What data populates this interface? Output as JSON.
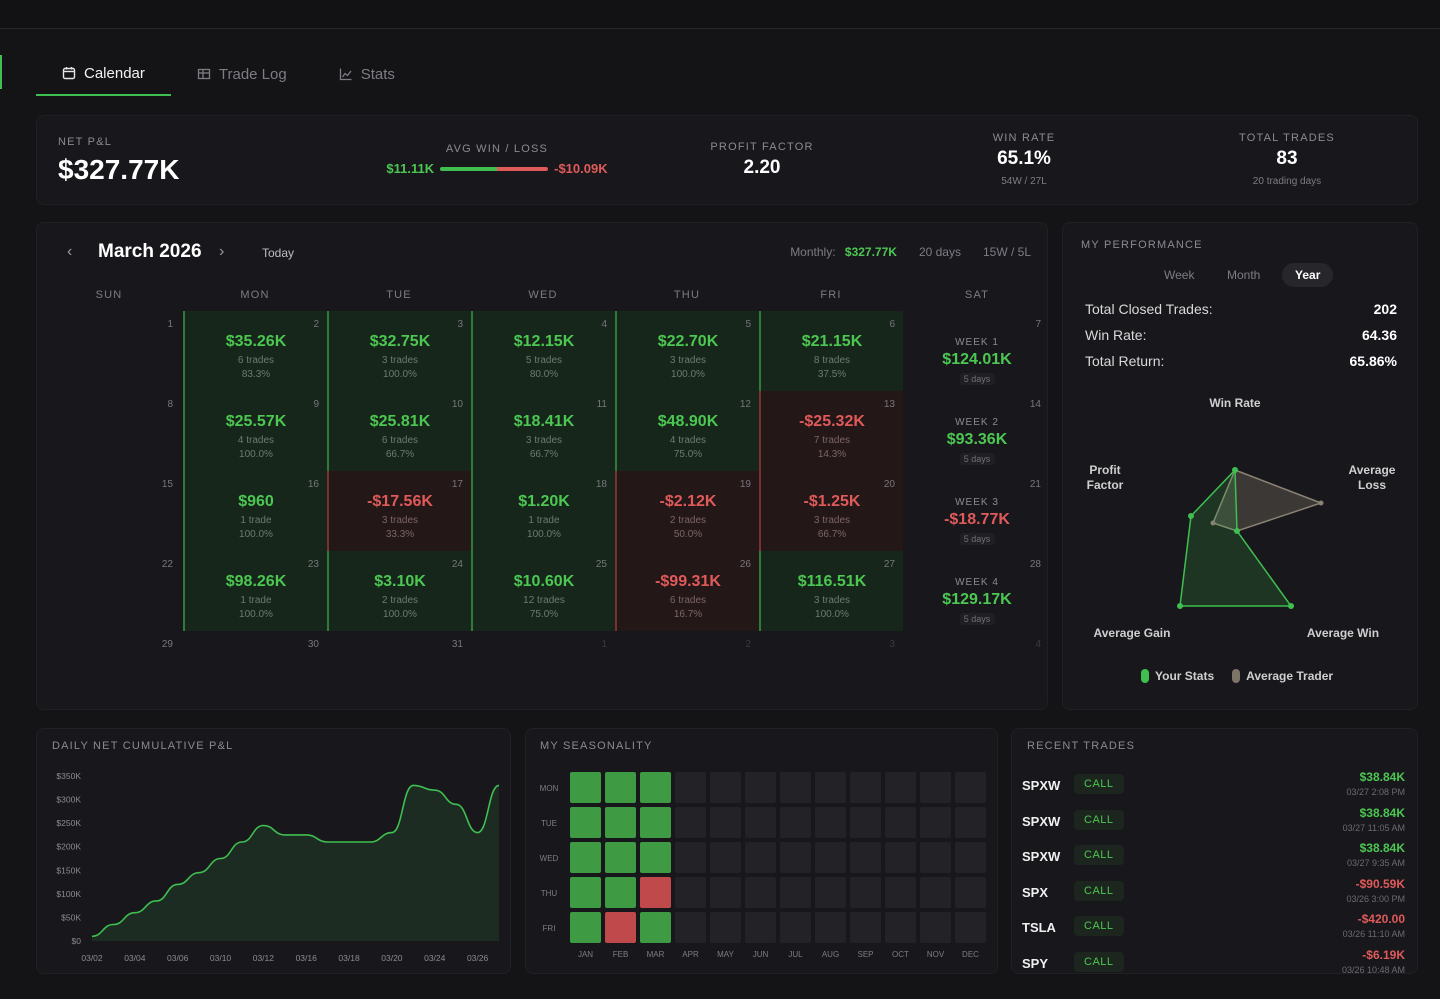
{
  "tabs": [
    {
      "label": "Calendar",
      "icon": "calendar-icon",
      "active": true
    },
    {
      "label": "Trade Log",
      "icon": "table-icon",
      "active": false
    },
    {
      "label": "Stats",
      "icon": "chart-line-icon",
      "active": false
    }
  ],
  "summary": {
    "net_pnl_label": "NET P&L",
    "net_pnl": "$327.77K",
    "avg_label": "AVG WIN / LOSS",
    "avg_win": "$11.11K",
    "avg_loss": "-$10.09K",
    "pf_label": "PROFIT FACTOR",
    "pf": "2.20",
    "wr_label": "WIN RATE",
    "wr": "65.1%",
    "wr_sub": "54W / 27L",
    "tt_label": "TOTAL TRADES",
    "tt": "83",
    "tt_sub": "20 trading days"
  },
  "calendar": {
    "month": "March 2026",
    "today": "Today",
    "prev": "‹",
    "next": "›",
    "monthly_label": "Monthly:",
    "monthly_value": "$327.77K",
    "days": "20 days",
    "wl": "15W / 5L",
    "dow": [
      "SUN",
      "MON",
      "TUE",
      "WED",
      "THU",
      "FRI",
      "SAT"
    ],
    "weeks": [
      [
        {
          "d": "1"
        },
        {
          "d": "2",
          "v": "$35.26K",
          "t": "6 trades",
          "p": "83.3%",
          "s": "win"
        },
        {
          "d": "3",
          "v": "$32.75K",
          "t": "3 trades",
          "p": "100.0%",
          "s": "win"
        },
        {
          "d": "4",
          "v": "$12.15K",
          "t": "5 trades",
          "p": "80.0%",
          "s": "win"
        },
        {
          "d": "5",
          "v": "$22.70K",
          "t": "3 trades",
          "p": "100.0%",
          "s": "win"
        },
        {
          "d": "6",
          "v": "$21.15K",
          "t": "8 trades",
          "p": "37.5%",
          "s": "win"
        },
        {
          "d": "7",
          "wl": "WEEK 1",
          "v": "$124.01K",
          "days": "5 days",
          "s": "win"
        }
      ],
      [
        {
          "d": "8"
        },
        {
          "d": "9",
          "v": "$25.57K",
          "t": "4 trades",
          "p": "100.0%",
          "s": "win"
        },
        {
          "d": "10",
          "v": "$25.81K",
          "t": "6 trades",
          "p": "66.7%",
          "s": "win"
        },
        {
          "d": "11",
          "v": "$18.41K",
          "t": "3 trades",
          "p": "66.7%",
          "s": "win"
        },
        {
          "d": "12",
          "v": "$48.90K",
          "t": "4 trades",
          "p": "75.0%",
          "s": "win"
        },
        {
          "d": "13",
          "v": "-$25.32K",
          "t": "7 trades",
          "p": "14.3%",
          "s": "loss"
        },
        {
          "d": "14",
          "wl": "WEEK 2",
          "v": "$93.36K",
          "days": "5 days",
          "s": "win"
        }
      ],
      [
        {
          "d": "15"
        },
        {
          "d": "16",
          "v": "$960",
          "t": "1 trade",
          "p": "100.0%",
          "s": "win"
        },
        {
          "d": "17",
          "v": "-$17.56K",
          "t": "3 trades",
          "p": "33.3%",
          "s": "loss"
        },
        {
          "d": "18",
          "v": "$1.20K",
          "t": "1 trade",
          "p": "100.0%",
          "s": "win"
        },
        {
          "d": "19",
          "v": "-$2.12K",
          "t": "2 trades",
          "p": "50.0%",
          "s": "loss"
        },
        {
          "d": "20",
          "v": "-$1.25K",
          "t": "3 trades",
          "p": "66.7%",
          "s": "loss"
        },
        {
          "d": "21",
          "wl": "WEEK 3",
          "v": "-$18.77K",
          "days": "5 days",
          "s": "loss"
        }
      ],
      [
        {
          "d": "22"
        },
        {
          "d": "23",
          "v": "$98.26K",
          "t": "1 trade",
          "p": "100.0%",
          "s": "win"
        },
        {
          "d": "24",
          "v": "$3.10K",
          "t": "2 trades",
          "p": "100.0%",
          "s": "win"
        },
        {
          "d": "25",
          "v": "$10.60K",
          "t": "12 trades",
          "p": "75.0%",
          "s": "win"
        },
        {
          "d": "26",
          "v": "-$99.31K",
          "t": "6 trades",
          "p": "16.7%",
          "s": "loss"
        },
        {
          "d": "27",
          "v": "$116.51K",
          "t": "3 trades",
          "p": "100.0%",
          "s": "win"
        },
        {
          "d": "28",
          "wl": "WEEK 4",
          "v": "$129.17K",
          "days": "5 days",
          "s": "win"
        }
      ],
      [
        {
          "d": "29"
        },
        {
          "d": "30"
        },
        {
          "d": "31"
        },
        {
          "d": "1",
          "dim": true
        },
        {
          "d": "2",
          "dim": true
        },
        {
          "d": "3",
          "dim": true
        },
        {
          "d": "4",
          "dim": true
        }
      ]
    ]
  },
  "performance": {
    "title": "MY PERFORMANCE",
    "segments": [
      {
        "label": "Week",
        "on": false
      },
      {
        "label": "Month",
        "on": false
      },
      {
        "label": "Year",
        "on": true
      }
    ],
    "rows": [
      {
        "k": "Total Closed Trades:",
        "v": "202"
      },
      {
        "k": "Win Rate:",
        "v": "64.36"
      },
      {
        "k": "Total Return:",
        "v": "65.86%"
      }
    ],
    "radar_labels": {
      "top": "Win Rate",
      "left": "Profit\nFactor",
      "right": "Average\nLoss",
      "bl": "Average Gain",
      "br": "Average Win"
    },
    "legend": [
      {
        "label": "Your Stats",
        "color": "#3fbf4f"
      },
      {
        "label": "Average Trader",
        "color": "#7d7668"
      }
    ]
  },
  "cumulative": {
    "title": "DAILY NET CUMULATIVE P&L",
    "chart_data": {
      "type": "line",
      "title": "DAILY NET CUMULATIVE P&L",
      "x": [
        "03/02",
        "03/03",
        "03/04",
        "03/05",
        "03/06",
        "03/09",
        "03/10",
        "03/11",
        "03/12",
        "03/13",
        "03/16",
        "03/17",
        "03/18",
        "03/19",
        "03/20",
        "03/23",
        "03/24",
        "03/25",
        "03/26",
        "03/27"
      ],
      "y": [
        10,
        35,
        60,
        85,
        120,
        145,
        175,
        210,
        245,
        225,
        225,
        210,
        210,
        210,
        230,
        330,
        320,
        290,
        230,
        330
      ],
      "x_ticks": [
        "03/02",
        "03/04",
        "03/06",
        "03/10",
        "03/12",
        "03/16",
        "03/18",
        "03/20",
        "03/24",
        "03/26"
      ],
      "y_ticks": [
        "$0",
        "$50K",
        "$100K",
        "$150K",
        "$200K",
        "$250K",
        "$300K",
        "$350K"
      ],
      "ylim": [
        0,
        350
      ],
      "color": "#3fbf4f"
    }
  },
  "seasonality": {
    "title": "MY SEASONALITY",
    "rows": [
      "MON",
      "TUE",
      "WED",
      "THU",
      "FRI"
    ],
    "months": [
      "JAN",
      "FEB",
      "MAR",
      "APR",
      "MAY",
      "JUN",
      "JUL",
      "AUG",
      "SEP",
      "OCT",
      "NOV",
      "DEC"
    ],
    "cells": [
      [
        "g",
        "g",
        "g",
        "n",
        "n",
        "n",
        "n",
        "n",
        "n",
        "n",
        "n",
        "n"
      ],
      [
        "g",
        "g",
        "g",
        "n",
        "n",
        "n",
        "n",
        "n",
        "n",
        "n",
        "n",
        "n"
      ],
      [
        "g",
        "g",
        "g",
        "n",
        "n",
        "n",
        "n",
        "n",
        "n",
        "n",
        "n",
        "n"
      ],
      [
        "g",
        "g",
        "r",
        "n",
        "n",
        "n",
        "n",
        "n",
        "n",
        "n",
        "n",
        "n"
      ],
      [
        "g",
        "r",
        "g",
        "n",
        "n",
        "n",
        "n",
        "n",
        "n",
        "n",
        "n",
        "n"
      ]
    ]
  },
  "recent": {
    "title": "RECENT TRADES",
    "trades": [
      {
        "sym": "SPXW",
        "type": "CALL",
        "amt": "$38.84K",
        "dt": "03/27 2:08 PM",
        "s": "win"
      },
      {
        "sym": "SPXW",
        "type": "CALL",
        "amt": "$38.84K",
        "dt": "03/27 11:05 AM",
        "s": "win"
      },
      {
        "sym": "SPXW",
        "type": "CALL",
        "amt": "$38.84K",
        "dt": "03/27 9:35 AM",
        "s": "win"
      },
      {
        "sym": "SPX",
        "type": "CALL",
        "amt": "-$90.59K",
        "dt": "03/26 3:00 PM",
        "s": "loss"
      },
      {
        "sym": "TSLA",
        "type": "CALL",
        "amt": "-$420.00",
        "dt": "03/26 11:10 AM",
        "s": "loss"
      },
      {
        "sym": "SPY",
        "type": "CALL",
        "amt": "-$6.19K",
        "dt": "03/26 10:48 AM",
        "s": "loss"
      }
    ]
  }
}
